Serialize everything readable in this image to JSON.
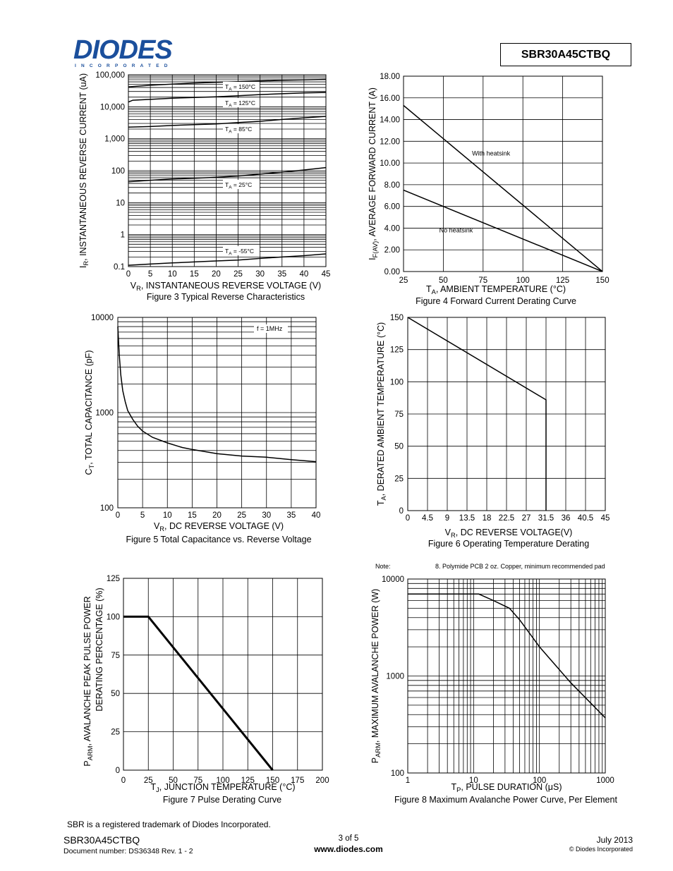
{
  "header": {
    "logo_text": "DIODES",
    "logo_sub": "INCORPORATED",
    "part_number": "SBR30A45CTBQ"
  },
  "figures": {
    "fig3": {
      "caption": "Figure 3 Typical Reverse Characteristics",
      "xlabel_main": "V",
      "xlabel_sub": "R",
      "xlabel_rest": ", INSTANTANEOUS REVERSE VOLTAGE (V)",
      "ylabel_main": "I",
      "ylabel_sub": "R",
      "ylabel_rest": ", INSTANTANEOUS REVERSE CURRENT (uA)"
    },
    "fig4": {
      "caption": "Figure 4  Forward Current Derating Curve",
      "xlabel_main": "T",
      "xlabel_sub": "A",
      "xlabel_rest": ", AMBIENT TEMPERATURE (°C)",
      "ylabel_main": "I",
      "ylabel_sub": "F(AV)",
      "ylabel_rest": ", AVERAGE FORWARD CURRENT (A)"
    },
    "fig5": {
      "caption": "Figure 5 Total Capacitance vs. Reverse Voltage",
      "xlabel_main": "V",
      "xlabel_sub": "R",
      "xlabel_rest": ", DC REVERSE VOLTAGE (V)",
      "ylabel_main": "C",
      "ylabel_sub": "T",
      "ylabel_rest": ", TOTAL CAPACITANCE (pF)"
    },
    "fig6": {
      "caption": "Figure 6 Operating Temperature Derating",
      "xlabel_main": "V",
      "xlabel_sub": "R",
      "xlabel_rest": ", DC REVERSE VOLTAGE(V)",
      "ylabel_main": "T",
      "ylabel_sub": "A",
      "ylabel_rest": ", DERATED AMBIENT TEMPERATURE (°C)"
    },
    "fig7": {
      "caption": "Figure 7 Pulse Derating Curve",
      "xlabel_main": "T",
      "xlabel_sub": "J",
      "xlabel_rest": ", JUNCTION TEMPERATURE (°C)",
      "ylabel_main": "P",
      "ylabel_sub": "ARM",
      "ylabel_rest": ", AVALANCHE PEAK PULSE POWER",
      "ylabel_line2": "DERATING PERCENTAGE (%)"
    },
    "fig8": {
      "caption": "Figure 8 Maximum Avalanche Power Curve, Per Element",
      "xlabel_main": "T",
      "xlabel_sub": "P",
      "xlabel_rest": ", PULSE DURATION (μS)",
      "ylabel_main": "P",
      "ylabel_sub": "ARM",
      "ylabel_rest": ", MAXIMUM AVALANCHE POWER (W)",
      "note_label": "Note:",
      "note_text": "8. Polymide PCB 2 oz. Copper, minimum recommended pad"
    }
  },
  "chart_data": [
    {
      "id": "fig3",
      "type": "line",
      "yscale": "log",
      "title": "Figure 3 Typical Reverse Characteristics",
      "xlabel": "VR, INSTANTANEOUS REVERSE VOLTAGE (V)",
      "ylabel": "IR, INSTANTANEOUS REVERSE CURRENT (uA)",
      "xlim": [
        0,
        45
      ],
      "ylim": [
        0.1,
        100000
      ],
      "xticks": [
        "0",
        "5",
        "10",
        "15",
        "20",
        "25",
        "30",
        "35",
        "40",
        "45"
      ],
      "yticks": [
        "0.1",
        "1",
        "10",
        "100",
        "1,000",
        "10,000",
        "100,000"
      ],
      "series": [
        {
          "name": "TA = 150°C",
          "label_main": "T",
          "label_sub": "A",
          "label_rest": " = 150°C",
          "x": [
            0,
            5,
            10,
            15,
            20,
            25,
            30,
            35,
            40,
            45
          ],
          "y": [
            42000,
            47000,
            51000,
            55000,
            58000,
            61000,
            64000,
            67000,
            69000,
            72000
          ]
        },
        {
          "name": "TA = 125°C",
          "label_main": "T",
          "label_sub": "A",
          "label_rest": " = 125°C",
          "x": [
            0,
            1,
            5,
            10,
            15,
            20,
            25,
            30,
            35,
            40,
            45
          ],
          "y": [
            14000,
            16000,
            17000,
            18500,
            19500,
            20500,
            22000,
            24000,
            25500,
            27000,
            28000
          ]
        },
        {
          "name": "TA = 85°C",
          "label_main": "T",
          "label_sub": "A",
          "label_rest": " = 85°C",
          "x": [
            0,
            5,
            10,
            15,
            20,
            25,
            30,
            35,
            40,
            45
          ],
          "y": [
            2300,
            2400,
            2600,
            2750,
            2900,
            3200,
            3500,
            4000,
            4500,
            5000
          ]
        },
        {
          "name": "TA = 25°C",
          "label_main": "T",
          "label_sub": "A",
          "label_rest": " = 25°C",
          "x": [
            0,
            5,
            10,
            15,
            20,
            25,
            30,
            35,
            40,
            45
          ],
          "y": [
            45,
            50,
            55,
            58,
            62,
            68,
            78,
            90,
            105,
            125
          ]
        },
        {
          "name": "TA = -55°C",
          "label_main": "T",
          "label_sub": "A",
          "label_rest": " = -55°C",
          "x": [
            0,
            5,
            10,
            15,
            20,
            25,
            30,
            35,
            40,
            45
          ],
          "y": [
            0.11,
            0.12,
            0.13,
            0.14,
            0.15,
            0.16,
            0.18,
            0.2,
            0.22,
            0.25
          ]
        }
      ]
    },
    {
      "id": "fig4",
      "type": "line",
      "title": "Figure 4  Forward Current Derating Curve",
      "xlabel": "TA, AMBIENT TEMPERATURE (°C)",
      "ylabel": "IF(AV), AVERAGE FORWARD CURRENT (A)",
      "xlim": [
        25,
        150
      ],
      "ylim": [
        0,
        18
      ],
      "xticks": [
        "25",
        "50",
        "75",
        "100",
        "125",
        "150"
      ],
      "yticks": [
        "0.00",
        "2.00",
        "4.00",
        "6.00",
        "8.00",
        "10.00",
        "12.00",
        "14.00",
        "16.00",
        "18.00"
      ],
      "series": [
        {
          "name": "With heatsink",
          "x": [
            25,
            150
          ],
          "y": [
            15.3,
            0
          ]
        },
        {
          "name": "No heatsink",
          "x": [
            25,
            150
          ],
          "y": [
            7.5,
            0
          ]
        }
      ]
    },
    {
      "id": "fig5",
      "type": "line",
      "yscale": "log",
      "title": "Figure 5 Total Capacitance vs. Reverse Voltage",
      "xlabel": "VR, DC REVERSE VOLTAGE (V)",
      "ylabel": "CT, TOTAL CAPACITANCE (pF)",
      "xlim": [
        0,
        40
      ],
      "ylim": [
        100,
        10000
      ],
      "xticks": [
        "0",
        "5",
        "10",
        "15",
        "20",
        "25",
        "30",
        "35",
        "40"
      ],
      "yticks": [
        "100",
        "1000",
        "10000"
      ],
      "annotation": "f = 1MHz",
      "series": [
        {
          "name": "",
          "x": [
            0,
            0.3,
            0.6,
            1,
            1.5,
            2,
            3,
            4,
            5,
            7,
            10,
            13,
            15,
            20,
            25,
            30,
            35,
            40
          ],
          "y": [
            8000,
            4000,
            2500,
            1700,
            1300,
            1050,
            850,
            720,
            640,
            550,
            480,
            430,
            410,
            370,
            350,
            340,
            320,
            305
          ]
        }
      ]
    },
    {
      "id": "fig6",
      "type": "line",
      "title": "Figure 6 Operating Temperature Derating",
      "xlabel": "VR, DC REVERSE VOLTAGE(V)",
      "ylabel": "TA, DERATED AMBIENT TEMPERATURE (°C)",
      "xlim": [
        0,
        45
      ],
      "ylim": [
        0,
        150
      ],
      "xticks": [
        "0",
        "4.5",
        "9",
        "13.5",
        "18",
        "22.5",
        "27",
        "31.5",
        "36",
        "40.5",
        "45"
      ],
      "yticks": [
        "0",
        "25",
        "50",
        "75",
        "100",
        "125",
        "150"
      ],
      "series": [
        {
          "name": "",
          "x": [
            0,
            31.5,
            31.5
          ],
          "y": [
            150,
            86,
            0
          ]
        }
      ]
    },
    {
      "id": "fig7",
      "type": "line",
      "title": "Figure 7 Pulse Derating Curve",
      "xlabel": "TJ, JUNCTION TEMPERATURE (°C)",
      "ylabel": "PARM, AVALANCHE PEAK PULSE POWER DERATING PERCENTAGE (%)",
      "xlim": [
        0,
        200
      ],
      "ylim": [
        0,
        125
      ],
      "xticks": [
        "0",
        "25",
        "50",
        "75",
        "100",
        "125",
        "150",
        "175",
        "200"
      ],
      "yticks": [
        "0",
        "25",
        "50",
        "75",
        "100",
        "125"
      ],
      "series": [
        {
          "name": "",
          "x": [
            0,
            25,
            150
          ],
          "y": [
            100,
            100,
            0
          ]
        }
      ]
    },
    {
      "id": "fig8",
      "type": "line",
      "xscale": "log",
      "yscale": "log",
      "title": "Figure 8 Maximum Avalanche Power Curve, Per Element",
      "xlabel": "TP, PULSE DURATION (μS)",
      "ylabel": "PARM, MAXIMUM AVALANCHE POWER (W)",
      "xlim": [
        1,
        1000
      ],
      "ylim": [
        100,
        10000
      ],
      "xticks": [
        "1",
        "10",
        "100",
        "1000"
      ],
      "yticks": [
        "100",
        "1000",
        "10000"
      ],
      "series": [
        {
          "name": "",
          "x": [
            1,
            12,
            20,
            35,
            50,
            100,
            300,
            1000
          ],
          "y": [
            7000,
            7000,
            6000,
            5000,
            3800,
            2000,
            850,
            370
          ]
        }
      ]
    }
  ],
  "footer": {
    "trademark": "SBR is a registered trademark of Diodes Incorporated.",
    "part": "SBR30A45CTBQ",
    "docnum": "Document number: DS36348 Rev. 1 - 2",
    "page": "3 of 5",
    "website": "www.diodes.com",
    "date": "July 2013",
    "copyright": "© Diodes Incorporated"
  }
}
